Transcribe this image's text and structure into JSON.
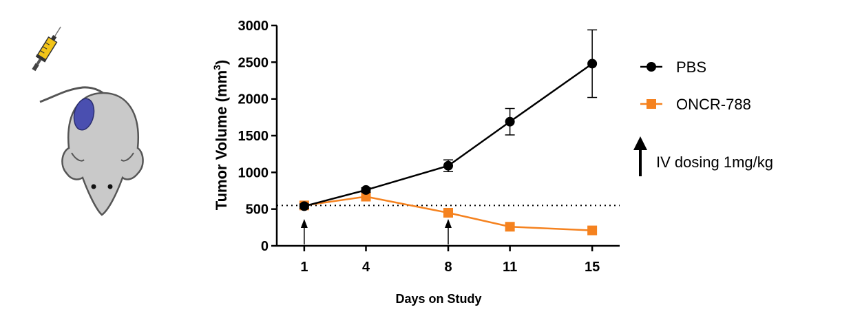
{
  "chart_data": {
    "type": "line",
    "xlabel": "Days on Study",
    "ylabel": "Tumor Volume (mm",
    "ylabel_sup": "3",
    "ylabel_end": ")",
    "categories": [
      1,
      4,
      8,
      11,
      15
    ],
    "ylim": [
      0,
      3000
    ],
    "yticks": [
      0,
      500,
      1000,
      1500,
      2000,
      2500,
      3000
    ],
    "series": [
      {
        "name": "PBS",
        "color": "#000000",
        "marker": "circle",
        "values": [
          540,
          760,
          1090,
          1690,
          2480
        ],
        "errors": [
          30,
          30,
          80,
          180,
          460
        ]
      },
      {
        "name": "ONCR-788",
        "color": "#f5821f",
        "marker": "square",
        "values": [
          550,
          670,
          450,
          260,
          210
        ],
        "errors": [
          0,
          0,
          0,
          0,
          0
        ]
      }
    ],
    "reference_line": 550,
    "dosing_days": [
      1,
      8
    ],
    "dosing_label": "IV dosing 1mg/kg"
  },
  "colors": {
    "mouse_body": "#c9c9c9",
    "tumor": "#4a4fb0",
    "syringe": "#f2c418"
  },
  "icons": {
    "mouse": "mouse-illustration-icon",
    "syringe": "syringe-icon"
  }
}
